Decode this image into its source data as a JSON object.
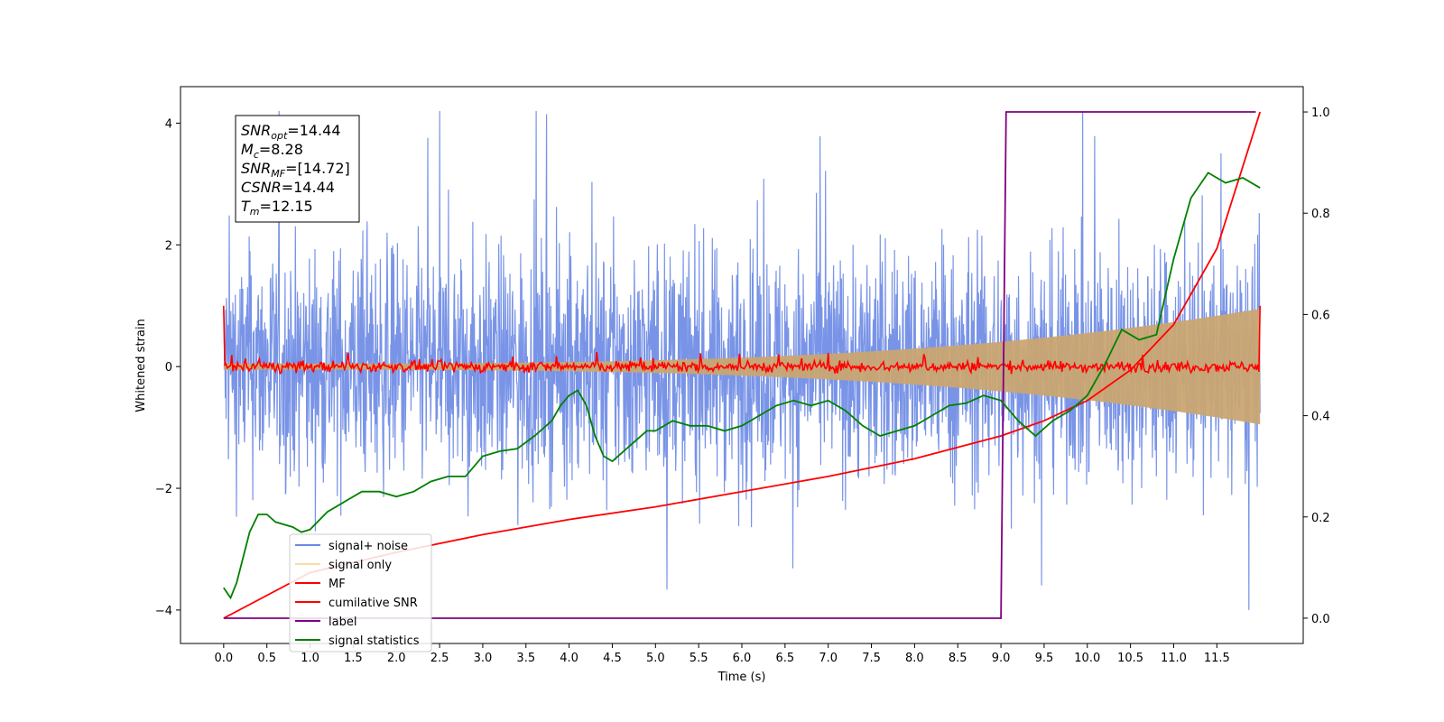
{
  "chart_data": {
    "type": "line",
    "xlabel": "Time (s)",
    "ylabel": "Whitened strain",
    "xlim": [
      -0.5,
      12.5
    ],
    "ylim": [
      -4.55,
      4.6
    ],
    "y2lim": [
      -0.05,
      1.05
    ],
    "xticks": [
      "0.0",
      "0.5",
      "1.0",
      "1.5",
      "2.0",
      "2.5",
      "3.0",
      "3.5",
      "4.0",
      "4.5",
      "5.0",
      "5.5",
      "6.0",
      "6.5",
      "7.0",
      "7.5",
      "8.0",
      "8.5",
      "9.0",
      "9.5",
      "10.0",
      "10.5",
      "11.0",
      "11.5"
    ],
    "yticks": [
      "4",
      "2",
      "0",
      "−2",
      "−4"
    ],
    "y2ticks": [
      "1.0",
      "0.8",
      "0.6",
      "0.4",
      "0.2",
      "0.0"
    ],
    "grid": false,
    "legend_position": "lower-left",
    "info_box": [
      {
        "base": "SNR",
        "sub": "opt",
        "value": "=14.44"
      },
      {
        "base": "M",
        "sub": "c",
        "value": "=8.28"
      },
      {
        "base": "SNR",
        "sub": "MF",
        "value": "=[14.72]"
      },
      {
        "base": "CSNR",
        "sub": "",
        "value": "=14.44"
      },
      {
        "base": "T",
        "sub": "m",
        "value": "=12.15"
      }
    ],
    "series": [
      {
        "name": "signal+ noise",
        "color": "#6a88e4",
        "axis": "left",
        "kind": "noise",
        "amplitude_range": [
          -4.0,
          4.2
        ],
        "x_range": [
          0.0,
          12.0
        ]
      },
      {
        "name": "signal only",
        "color": "#f2c46d",
        "axis": "left",
        "kind": "envelope",
        "envelope_start": 0.05,
        "envelope_end": 0.95,
        "x_range": [
          0.0,
          12.0
        ]
      },
      {
        "name": "MF",
        "color": "#ff0000",
        "axis": "left",
        "kind": "mf",
        "x_range": [
          0.0,
          12.0
        ]
      },
      {
        "name": "cumilative SNR",
        "color": "#ff0000",
        "axis": "right",
        "x": [
          0.0,
          1.0,
          2.0,
          3.0,
          4.0,
          5.0,
          6.0,
          7.0,
          8.0,
          9.0,
          9.5,
          10.0,
          10.5,
          11.0,
          11.5,
          12.0
        ],
        "y": [
          0.0,
          0.09,
          0.13,
          0.165,
          0.195,
          0.22,
          0.25,
          0.28,
          0.315,
          0.36,
          0.39,
          0.43,
          0.49,
          0.58,
          0.73,
          1.0
        ]
      },
      {
        "name": "label",
        "color": "#800080",
        "axis": "right",
        "x": [
          0.0,
          9.0,
          9.06,
          11.95
        ],
        "y": [
          0.0,
          0.0,
          1.0,
          1.0
        ]
      },
      {
        "name": "signal statistics",
        "color": "#008000",
        "axis": "right",
        "x": [
          0.0,
          0.08,
          0.15,
          0.3,
          0.4,
          0.5,
          0.6,
          0.8,
          0.9,
          1.0,
          1.2,
          1.4,
          1.6,
          1.8,
          2.0,
          2.2,
          2.4,
          2.6,
          2.8,
          3.0,
          3.2,
          3.4,
          3.6,
          3.8,
          3.9,
          4.0,
          4.1,
          4.2,
          4.3,
          4.4,
          4.5,
          4.7,
          4.9,
          5.0,
          5.2,
          5.4,
          5.6,
          5.8,
          6.0,
          6.2,
          6.4,
          6.6,
          6.8,
          7.0,
          7.2,
          7.4,
          7.6,
          7.8,
          8.0,
          8.2,
          8.4,
          8.6,
          8.8,
          9.0,
          9.2,
          9.4,
          9.6,
          9.8,
          10.0,
          10.2,
          10.4,
          10.6,
          10.8,
          11.0,
          11.2,
          11.4,
          11.6,
          11.8,
          12.0
        ],
        "y": [
          0.06,
          0.04,
          0.07,
          0.17,
          0.205,
          0.205,
          0.19,
          0.18,
          0.17,
          0.175,
          0.21,
          0.23,
          0.25,
          0.25,
          0.24,
          0.25,
          0.27,
          0.28,
          0.28,
          0.32,
          0.33,
          0.335,
          0.36,
          0.39,
          0.42,
          0.44,
          0.45,
          0.42,
          0.36,
          0.32,
          0.31,
          0.34,
          0.37,
          0.37,
          0.39,
          0.38,
          0.38,
          0.37,
          0.38,
          0.4,
          0.42,
          0.43,
          0.42,
          0.43,
          0.41,
          0.38,
          0.36,
          0.37,
          0.38,
          0.4,
          0.42,
          0.425,
          0.44,
          0.43,
          0.39,
          0.36,
          0.39,
          0.41,
          0.44,
          0.5,
          0.57,
          0.55,
          0.56,
          0.71,
          0.83,
          0.88,
          0.86,
          0.87,
          0.85
        ]
      }
    ]
  }
}
